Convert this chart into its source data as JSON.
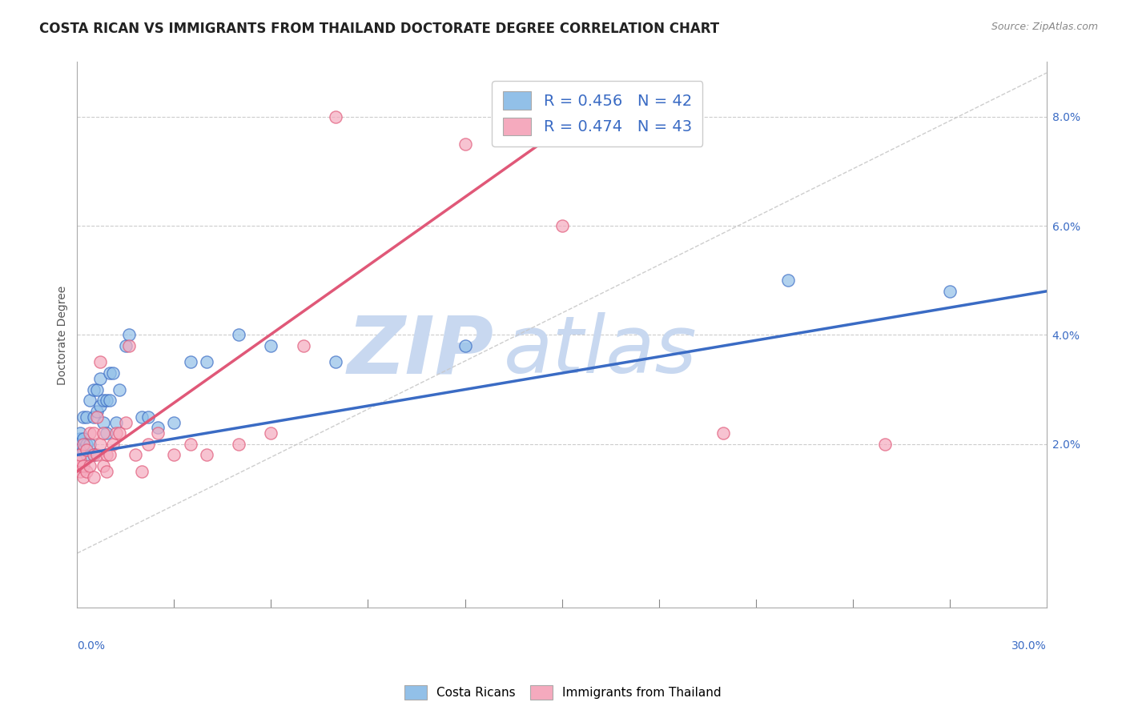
{
  "title": "COSTA RICAN VS IMMIGRANTS FROM THAILAND DOCTORATE DEGREE CORRELATION CHART",
  "source": "Source: ZipAtlas.com",
  "ylabel": "Doctorate Degree",
  "right_yticks": [
    0.02,
    0.04,
    0.06,
    0.08
  ],
  "right_yticklabels": [
    "2.0%",
    "4.0%",
    "6.0%",
    "8.0%"
  ],
  "xmin": 0.0,
  "xmax": 0.3,
  "ymin": -0.01,
  "ymax": 0.09,
  "blue_R": "0.456",
  "blue_N": "42",
  "pink_R": "0.474",
  "pink_N": "43",
  "blue_color": "#92C0E8",
  "pink_color": "#F5AABE",
  "blue_line_color": "#3A6BC4",
  "pink_line_color": "#E05878",
  "watermark_zip": "ZIP",
  "watermark_atlas": "atlas",
  "watermark_color": "#C8D8F0",
  "grid_color": "#CCCCCC",
  "background_color": "#FFFFFF",
  "title_fontsize": 12,
  "axis_label_fontsize": 10,
  "tick_fontsize": 10,
  "legend_fontsize": 14,
  "blue_scatter_x": [
    0.001,
    0.001,
    0.001,
    0.001,
    0.002,
    0.002,
    0.002,
    0.003,
    0.003,
    0.003,
    0.004,
    0.004,
    0.005,
    0.005,
    0.005,
    0.006,
    0.006,
    0.007,
    0.007,
    0.008,
    0.008,
    0.009,
    0.009,
    0.01,
    0.01,
    0.011,
    0.012,
    0.013,
    0.015,
    0.016,
    0.02,
    0.022,
    0.025,
    0.03,
    0.035,
    0.04,
    0.05,
    0.06,
    0.08,
    0.12,
    0.22,
    0.27
  ],
  "blue_scatter_y": [
    0.019,
    0.02,
    0.021,
    0.022,
    0.019,
    0.021,
    0.025,
    0.018,
    0.02,
    0.025,
    0.02,
    0.028,
    0.018,
    0.025,
    0.03,
    0.026,
    0.03,
    0.027,
    0.032,
    0.024,
    0.028,
    0.022,
    0.028,
    0.028,
    0.033,
    0.033,
    0.024,
    0.03,
    0.038,
    0.04,
    0.025,
    0.025,
    0.023,
    0.024,
    0.035,
    0.035,
    0.04,
    0.038,
    0.035,
    0.038,
    0.05,
    0.048
  ],
  "pink_scatter_x": [
    0.001,
    0.001,
    0.001,
    0.001,
    0.002,
    0.002,
    0.002,
    0.003,
    0.003,
    0.004,
    0.004,
    0.005,
    0.005,
    0.005,
    0.006,
    0.006,
    0.007,
    0.007,
    0.008,
    0.008,
    0.009,
    0.009,
    0.01,
    0.011,
    0.012,
    0.013,
    0.015,
    0.016,
    0.018,
    0.02,
    0.022,
    0.025,
    0.03,
    0.035,
    0.04,
    0.05,
    0.06,
    0.07,
    0.08,
    0.12,
    0.15,
    0.2,
    0.25
  ],
  "pink_scatter_y": [
    0.015,
    0.016,
    0.017,
    0.018,
    0.014,
    0.016,
    0.02,
    0.015,
    0.019,
    0.016,
    0.022,
    0.014,
    0.018,
    0.022,
    0.018,
    0.025,
    0.02,
    0.035,
    0.016,
    0.022,
    0.015,
    0.018,
    0.018,
    0.02,
    0.022,
    0.022,
    0.024,
    0.038,
    0.018,
    0.015,
    0.02,
    0.022,
    0.018,
    0.02,
    0.018,
    0.02,
    0.022,
    0.038,
    0.08,
    0.075,
    0.06,
    0.022,
    0.02
  ],
  "blue_line_x0": 0.0,
  "blue_line_y0": 0.018,
  "blue_line_x1": 0.3,
  "blue_line_y1": 0.048,
  "pink_line_x0": 0.0,
  "pink_line_y0": 0.015,
  "pink_line_x1": 0.16,
  "pink_line_y1": 0.082,
  "diag_color": "#C8C8C8"
}
